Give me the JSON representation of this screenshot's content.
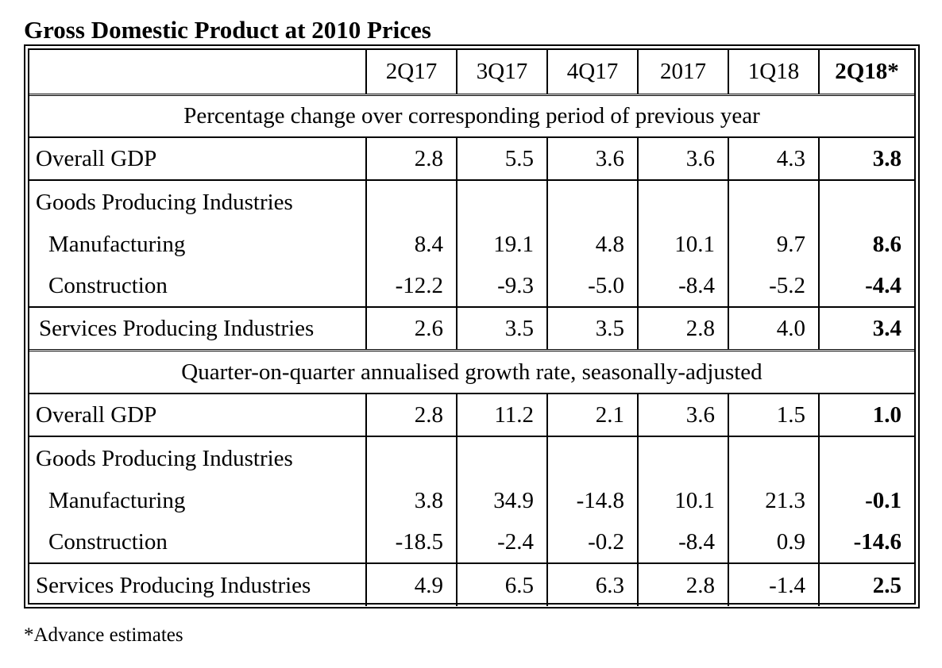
{
  "title": "Gross Domestic Product at 2010 Prices",
  "columns": [
    "2Q17",
    "3Q17",
    "4Q17",
    "2017",
    "1Q18",
    "2Q18*"
  ],
  "sections": [
    {
      "heading": "Percentage change over corresponding period of previous year",
      "rows": {
        "overall": {
          "label": "Overall GDP",
          "values": [
            "2.8",
            "5.5",
            "3.6",
            "3.6",
            "4.3",
            "3.8"
          ]
        },
        "goods": {
          "label": "Goods Producing Industries"
        },
        "manufacturing": {
          "label": "Manufacturing",
          "values": [
            "8.4",
            "19.1",
            "4.8",
            "10.1",
            "9.7",
            "8.6"
          ]
        },
        "construction": {
          "label": "Construction",
          "values": [
            "-12.2",
            "-9.3",
            "-5.0",
            "-8.4",
            "-5.2",
            "-4.4"
          ]
        },
        "services": {
          "label": "Services Producing Industries",
          "values": [
            "2.6",
            "3.5",
            "3.5",
            "2.8",
            "4.0",
            "3.4"
          ]
        }
      }
    },
    {
      "heading": "Quarter-on-quarter annualised growth rate, seasonally-adjusted",
      "rows": {
        "overall": {
          "label": "Overall GDP",
          "values": [
            "2.8",
            "11.2",
            "2.1",
            "3.6",
            "1.5",
            "1.0"
          ]
        },
        "goods": {
          "label": "Goods Producing Industries"
        },
        "manufacturing": {
          "label": "Manufacturing",
          "values": [
            "3.8",
            "34.9",
            "-14.8",
            "10.1",
            "21.3",
            "-0.1"
          ]
        },
        "construction": {
          "label": "Construction",
          "values": [
            "-18.5",
            "-2.4",
            "-0.2",
            "-8.4",
            "0.9",
            "-14.6"
          ]
        },
        "services": {
          "label": "Services Producing Industries",
          "values": [
            "4.9",
            "6.5",
            "6.3",
            "2.8",
            "-1.4",
            "2.5"
          ]
        }
      }
    }
  ],
  "footnote": "*Advance estimates"
}
